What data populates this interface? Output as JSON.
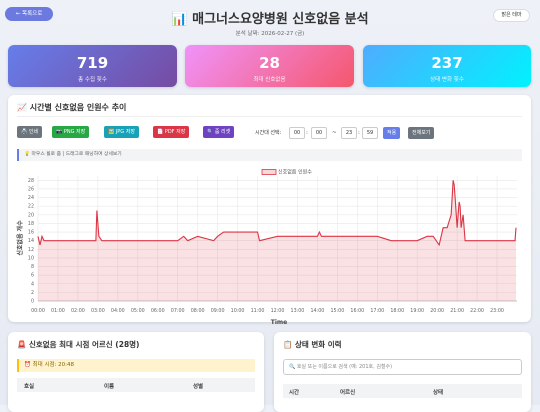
{
  "header": {
    "back": "← 목록으로",
    "title": "📊 매그너스요양병원 신호없음 분석",
    "subtitle": "분석 날짜: 2026-02-27 (금)",
    "theme": "밝은 테마"
  },
  "stats": [
    {
      "value": "719",
      "label": "총 수집 횟수"
    },
    {
      "value": "28",
      "label": "최대 신호없음"
    },
    {
      "value": "237",
      "label": "상태 변화 횟수"
    }
  ],
  "chart_panel": {
    "title": "📈 시간별 신호없음 인원수 추이",
    "buttons": [
      "🖨️ 인쇄",
      "📷 PNG 저장",
      "🖼️ JPG 저장",
      "📄 PDF 저장",
      "🔍 줌 리셋"
    ],
    "range_label": "시간대 선택:",
    "start_h": "00",
    "start_m": "00",
    "end_h": "23",
    "end_m": "59",
    "colon": ":",
    "tilde": "~",
    "apply": "적용",
    "all": "전체보기",
    "hint": "💡 마우스 휠로 줌 | 드래그로 패닝하여 상세보기"
  },
  "chart_data": {
    "type": "line",
    "x_label": "Time",
    "y_label": "신호없음 개수",
    "x": [
      0,
      0.1,
      0.2,
      0.3,
      0.5,
      1,
      2,
      2.9,
      2.95,
      3.0,
      3.05,
      3.2,
      4,
      5,
      6,
      7,
      7.3,
      7.5,
      8,
      8.8,
      9,
      9.3,
      10,
      11,
      11.1,
      12,
      13,
      13.5,
      14,
      14.1,
      14.2,
      15,
      15.5,
      16,
      17,
      17.7,
      18,
      19,
      19.5,
      19.8,
      20.1,
      20.3,
      20.5,
      20.7,
      20.8,
      20.85,
      20.9,
      21.0,
      21.1,
      21.15,
      21.2,
      21.3,
      21.4,
      22,
      23,
      23.9,
      23.95
    ],
    "series": [
      {
        "name": "신호없음 인원수",
        "color": "#dc3545",
        "values": [
          15,
          13,
          15,
          14,
          14,
          14,
          14,
          14,
          21,
          18,
          15,
          14,
          14,
          14,
          14,
          14,
          15,
          14,
          15,
          14,
          15,
          16,
          16,
          16,
          14,
          15,
          15,
          15,
          15,
          16,
          15,
          15,
          15,
          15,
          15,
          14,
          14,
          14,
          15,
          15,
          13,
          17,
          17,
          20,
          28,
          27,
          24,
          17,
          23,
          22,
          17,
          20,
          14,
          14,
          14,
          14,
          17
        ]
      }
    ],
    "xlim": [
      0,
      24
    ],
    "xticks": [
      {
        "value": 0,
        "label": "00:00"
      },
      {
        "value": 1,
        "label": "01:00"
      },
      {
        "value": 2,
        "label": "02:00"
      },
      {
        "value": 3,
        "label": "03:00"
      },
      {
        "value": 4,
        "label": "04:00"
      },
      {
        "value": 5,
        "label": "05:00"
      },
      {
        "value": 6,
        "label": "06:00"
      },
      {
        "value": 7,
        "label": "07:00"
      },
      {
        "value": 8,
        "label": "08:00"
      },
      {
        "value": 9,
        "label": "09:00"
      },
      {
        "value": 10,
        "label": "10:00"
      },
      {
        "value": 11,
        "label": "11:00"
      },
      {
        "value": 12,
        "label": "12:00"
      },
      {
        "value": 13,
        "label": "13:00"
      },
      {
        "value": 14,
        "label": "14:00"
      },
      {
        "value": 15,
        "label": "15:00"
      },
      {
        "value": 16,
        "label": "16:00"
      },
      {
        "value": 17,
        "label": "17:00"
      },
      {
        "value": 18,
        "label": "18:00"
      },
      {
        "value": 19,
        "label": "19:00"
      },
      {
        "value": 20,
        "label": "20:00"
      },
      {
        "value": 21,
        "label": "21:00"
      },
      {
        "value": 22,
        "label": "22:00"
      },
      {
        "value": 23,
        "label": "23:00"
      }
    ],
    "ylim": [
      0,
      29
    ],
    "yticks": [
      0,
      2,
      4,
      6,
      8,
      10,
      12,
      14,
      16,
      18,
      20,
      22,
      24,
      26,
      28
    ],
    "grid": true,
    "legend": "top"
  },
  "max_panel": {
    "title": "🚨 신호없음 최대 시점 어르신 (28명)",
    "time": "⏰ 최대 시점: 20:48",
    "columns": [
      "호실",
      "이름",
      "성별"
    ]
  },
  "history_panel": {
    "title": "📋 상태 변화 이력",
    "search": "🔍 호실 또는 이름으로 검색 (예: 201호, 김철수)",
    "columns": [
      "시간",
      "어르신",
      "상태"
    ]
  }
}
